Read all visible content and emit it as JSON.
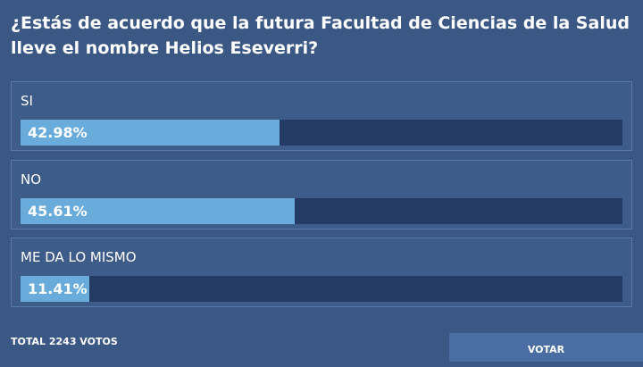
{
  "question": "¿Estás de acuerdo que la futura Facultad de Ciencias de la Salud lleve el nombre Helios Eseverri?",
  "options": [
    {
      "label": "SI",
      "value": 42.98,
      "value_label": "42.98%"
    },
    {
      "label": "NO",
      "value": 45.61,
      "value_label": "45.61%"
    },
    {
      "label": "ME DA LO MISMO",
      "value": 11.41,
      "value_label": "11.41%"
    }
  ],
  "total": "TOTAL 2243 VOTOS",
  "button": "VOTAR"
}
